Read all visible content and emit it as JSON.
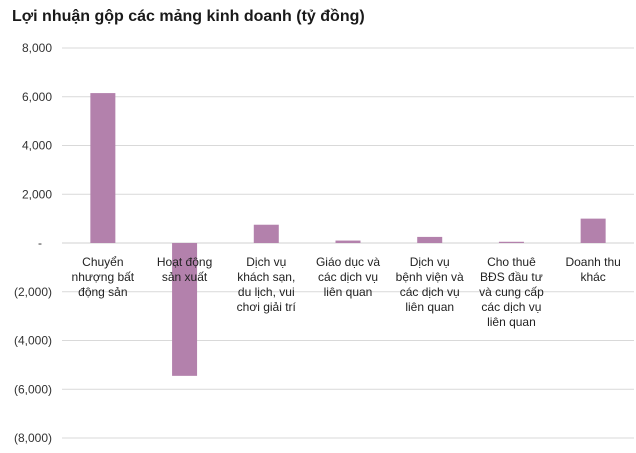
{
  "chart_data": {
    "type": "bar",
    "title": "Lợi nhuận gộp các mảng kinh doanh (tỷ đồng)",
    "categories": [
      [
        "Chuyển",
        "nhượng bất",
        "động sản"
      ],
      [
        "Hoạt động",
        "sản xuất"
      ],
      [
        "Dịch vụ",
        "khách sạn,",
        "du lịch, vui",
        "chơi giải trí"
      ],
      [
        "Giáo dục và",
        "các dịch vụ",
        "liên quan"
      ],
      [
        "Dịch vụ",
        "bệnh viện và",
        "các dịch vụ",
        "liên quan"
      ],
      [
        "Cho thuê",
        "BĐS đầu tư",
        "và cung cấp",
        "các dịch vụ",
        "liên quan"
      ],
      [
        "Doanh thu",
        "khác"
      ]
    ],
    "values": [
      6150,
      -5450,
      750,
      100,
      250,
      50,
      1000
    ],
    "ylim": [
      -8000,
      8000
    ],
    "yticks": [
      {
        "value": 8000,
        "label": "8,000"
      },
      {
        "value": 6000,
        "label": "6,000"
      },
      {
        "value": 4000,
        "label": "4,000"
      },
      {
        "value": 2000,
        "label": "2,000"
      },
      {
        "value": 0,
        "label": "-"
      },
      {
        "value": -2000,
        "label": "(2,000)"
      },
      {
        "value": -4000,
        "label": "(4,000)"
      },
      {
        "value": -6000,
        "label": "(6,000)"
      },
      {
        "value": -8000,
        "label": "(8,000)"
      }
    ],
    "grid": true,
    "legend": "none",
    "bar_color": "#b381ac",
    "grid_color": "#d9d9d9"
  }
}
